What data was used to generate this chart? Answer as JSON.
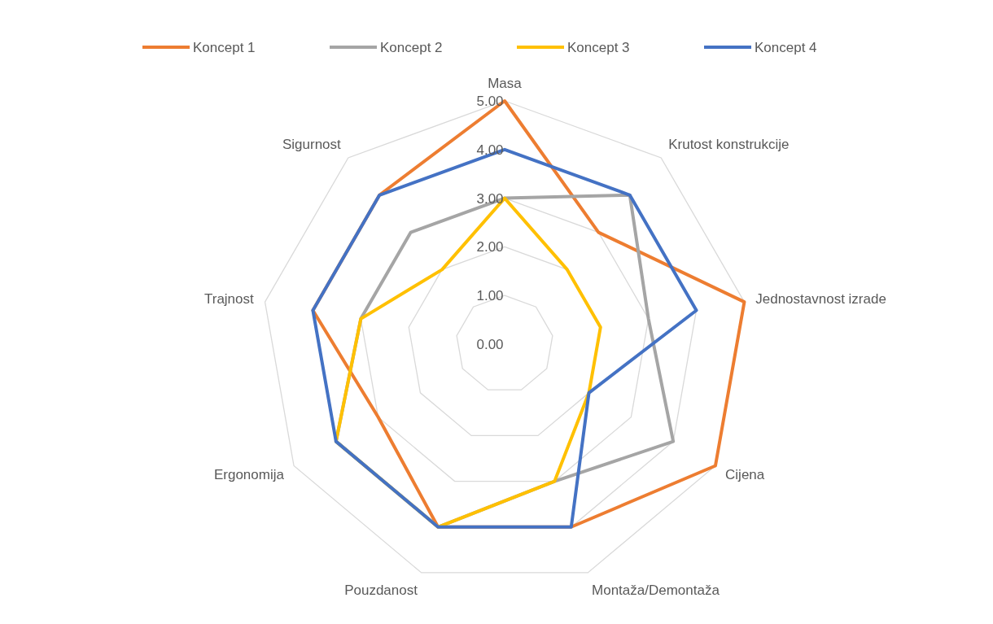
{
  "chart_data": {
    "type": "radar",
    "categories": [
      "Masa",
      "Krutost konstrukcije",
      "Jednostavnost izrade",
      "Cijena",
      "Montaža/Demontaža",
      "Pouzdanost",
      "Ergonomija",
      "Trajnost",
      "Sigurnost"
    ],
    "series": [
      {
        "name": "Koncept 1",
        "color": "#ed7d31",
        "values": [
          5,
          3,
          5,
          5,
          4,
          4,
          3,
          4,
          4
        ]
      },
      {
        "name": "Koncept 2",
        "color": "#a5a5a5",
        "values": [
          3,
          4,
          3,
          4,
          3,
          4,
          4,
          3,
          3
        ]
      },
      {
        "name": "Koncept 3",
        "color": "#ffc000",
        "values": [
          3,
          2,
          2,
          2,
          3,
          4,
          4,
          3,
          2
        ]
      },
      {
        "name": "Koncept 4",
        "color": "#4472c4",
        "values": [
          4,
          4,
          4,
          2,
          4,
          4,
          4,
          4,
          4
        ]
      }
    ],
    "ylim": [
      0,
      5
    ],
    "yticks": [
      {
        "value": 0,
        "label": "0.00"
      },
      {
        "value": 1,
        "label": "1.00"
      },
      {
        "value": 2,
        "label": "2.00"
      },
      {
        "value": 3,
        "label": "3.00"
      },
      {
        "value": 4,
        "label": "4.00"
      },
      {
        "value": 5,
        "label": "5.00"
      }
    ],
    "grid": true,
    "legend": "top",
    "marker": "none"
  }
}
